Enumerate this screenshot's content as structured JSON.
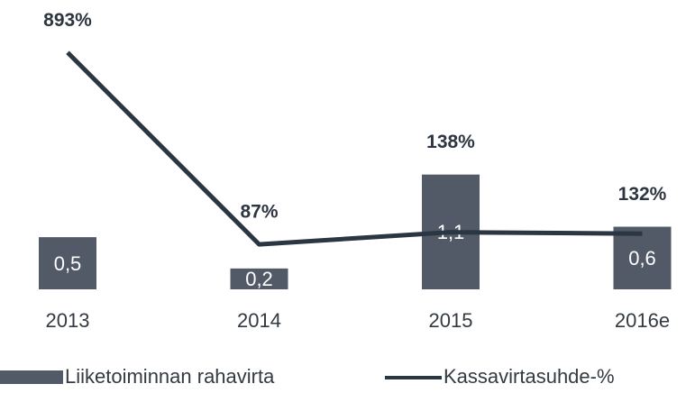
{
  "chart_data": {
    "type": "bar+line",
    "categories": [
      "2013",
      "2014",
      "2015",
      "2016e"
    ],
    "series": [
      {
        "name": "Liiketoiminnan rahavirta",
        "type": "bar",
        "color": "#525a68",
        "values": [
          0.5,
          0.2,
          1.1,
          0.6
        ],
        "value_labels": [
          "0,5",
          "0,2",
          "1,1",
          "0,6"
        ]
      },
      {
        "name": "Kassavirtasuhde-%",
        "type": "line",
        "axis": "y2",
        "color": "#2b3643",
        "values": [
          893,
          87,
          138,
          132
        ],
        "value_labels": [
          "893%",
          "87%",
          "138%",
          "132%"
        ]
      }
    ],
    "ylim": [
      0,
      2.6
    ],
    "y2lim": [
      -102,
      1038
    ],
    "legend": "bottom-left"
  }
}
